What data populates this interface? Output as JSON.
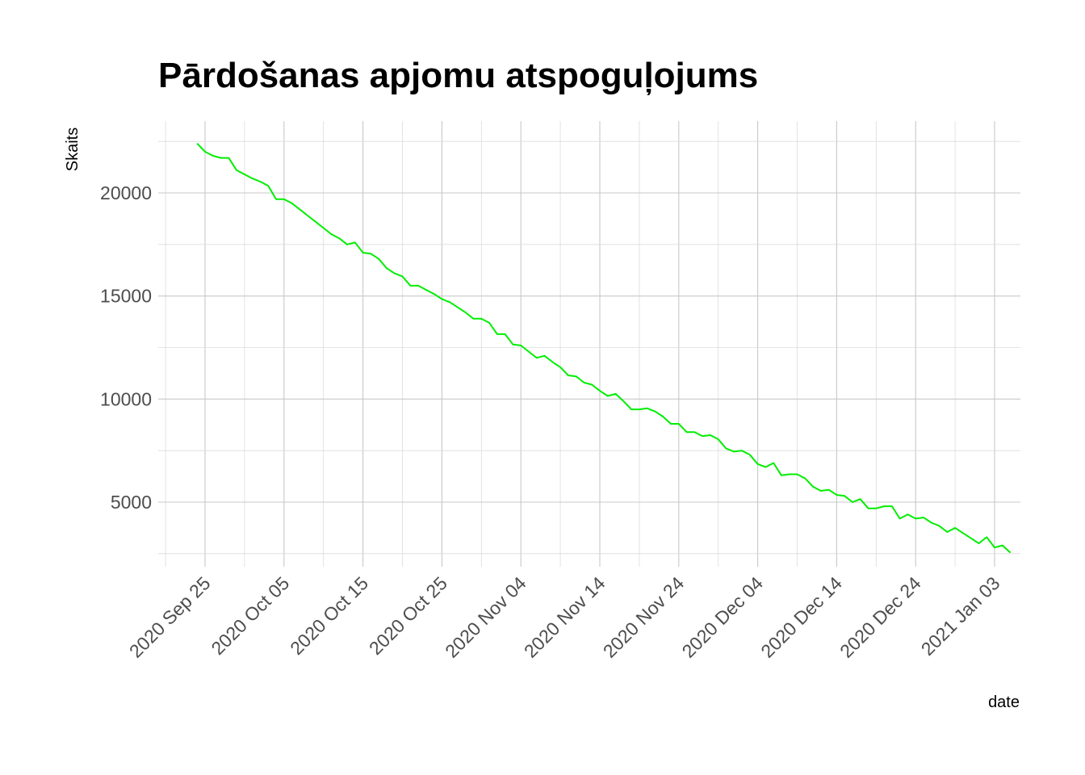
{
  "chart_data": {
    "type": "line",
    "title": "Pārdošanas apjomu atspoguļojums",
    "xlabel": "date",
    "ylabel": "Skaits",
    "x_ticks": [
      "2020 Sep 25",
      "2020 Oct 05",
      "2020 Oct 15",
      "2020 Oct 25",
      "2020 Nov 04",
      "2020 Nov 14",
      "2020 Nov 24",
      "2020 Dec 04",
      "2020 Dec 14",
      "2020 Dec 24",
      "2021 Jan 03"
    ],
    "y_ticks": [
      5000,
      10000,
      15000,
      20000
    ],
    "xlim": [
      "2020-09-20",
      "2021-01-05"
    ],
    "ylim": [
      2000,
      23200
    ],
    "grid": true,
    "line_color": "#00ee00",
    "series": [
      {
        "points": [
          [
            "2020-09-24",
            22400
          ],
          [
            "2020-09-25",
            22000
          ],
          [
            "2020-09-26",
            21800
          ],
          [
            "2020-09-27",
            21700
          ],
          [
            "2020-09-28",
            21700
          ],
          [
            "2020-09-29",
            21100
          ],
          [
            "2020-09-30",
            20900
          ],
          [
            "2020-10-01",
            20700
          ],
          [
            "2020-10-02",
            20550
          ],
          [
            "2020-10-03",
            20350
          ],
          [
            "2020-10-04",
            19700
          ],
          [
            "2020-10-05",
            19700
          ],
          [
            "2020-10-06",
            19500
          ],
          [
            "2020-10-07",
            19200
          ],
          [
            "2020-10-08",
            18900
          ],
          [
            "2020-10-09",
            18600
          ],
          [
            "2020-10-10",
            18300
          ],
          [
            "2020-10-11",
            18000
          ],
          [
            "2020-10-12",
            17800
          ],
          [
            "2020-10-13",
            17500
          ],
          [
            "2020-10-14",
            17600
          ],
          [
            "2020-10-15",
            17100
          ],
          [
            "2020-10-16",
            17050
          ],
          [
            "2020-10-17",
            16800
          ],
          [
            "2020-10-18",
            16350
          ],
          [
            "2020-10-19",
            16100
          ],
          [
            "2020-10-20",
            15950
          ],
          [
            "2020-10-21",
            15500
          ],
          [
            "2020-10-22",
            15500
          ],
          [
            "2020-10-23",
            15300
          ],
          [
            "2020-10-24",
            15100
          ],
          [
            "2020-10-25",
            14850
          ],
          [
            "2020-10-26",
            14700
          ],
          [
            "2020-10-27",
            14450
          ],
          [
            "2020-10-28",
            14200
          ],
          [
            "2020-10-29",
            13900
          ],
          [
            "2020-10-30",
            13900
          ],
          [
            "2020-10-31",
            13700
          ],
          [
            "2020-11-01",
            13150
          ],
          [
            "2020-11-02",
            13150
          ],
          [
            "2020-11-03",
            12650
          ],
          [
            "2020-11-04",
            12600
          ],
          [
            "2020-11-05",
            12300
          ],
          [
            "2020-11-06",
            12000
          ],
          [
            "2020-11-07",
            12100
          ],
          [
            "2020-11-08",
            11800
          ],
          [
            "2020-11-09",
            11550
          ],
          [
            "2020-11-10",
            11150
          ],
          [
            "2020-11-11",
            11100
          ],
          [
            "2020-11-12",
            10800
          ],
          [
            "2020-11-13",
            10700
          ],
          [
            "2020-11-14",
            10400
          ],
          [
            "2020-11-15",
            10150
          ],
          [
            "2020-11-16",
            10250
          ],
          [
            "2020-11-17",
            9900
          ],
          [
            "2020-11-18",
            9500
          ],
          [
            "2020-11-19",
            9500
          ],
          [
            "2020-11-20",
            9550
          ],
          [
            "2020-11-21",
            9400
          ],
          [
            "2020-11-22",
            9150
          ],
          [
            "2020-11-23",
            8800
          ],
          [
            "2020-11-24",
            8800
          ],
          [
            "2020-11-25",
            8400
          ],
          [
            "2020-11-26",
            8400
          ],
          [
            "2020-11-27",
            8200
          ],
          [
            "2020-11-28",
            8250
          ],
          [
            "2020-11-29",
            8050
          ],
          [
            "2020-11-30",
            7600
          ],
          [
            "2020-12-01",
            7450
          ],
          [
            "2020-12-02",
            7500
          ],
          [
            "2020-12-03",
            7300
          ],
          [
            "2020-12-04",
            6850
          ],
          [
            "2020-12-05",
            6700
          ],
          [
            "2020-12-06",
            6900
          ],
          [
            "2020-12-07",
            6300
          ],
          [
            "2020-12-08",
            6350
          ],
          [
            "2020-12-09",
            6350
          ],
          [
            "2020-12-10",
            6150
          ],
          [
            "2020-12-11",
            5750
          ],
          [
            "2020-12-12",
            5550
          ],
          [
            "2020-12-13",
            5600
          ],
          [
            "2020-12-14",
            5350
          ],
          [
            "2020-12-15",
            5300
          ],
          [
            "2020-12-16",
            5000
          ],
          [
            "2020-12-17",
            5150
          ],
          [
            "2020-12-18",
            4700
          ],
          [
            "2020-12-19",
            4700
          ],
          [
            "2020-12-20",
            4800
          ],
          [
            "2020-12-21",
            4800
          ],
          [
            "2020-12-22",
            4200
          ],
          [
            "2020-12-23",
            4400
          ],
          [
            "2020-12-24",
            4200
          ],
          [
            "2020-12-25",
            4250
          ],
          [
            "2020-12-26",
            4000
          ],
          [
            "2020-12-27",
            3850
          ],
          [
            "2020-12-28",
            3550
          ],
          [
            "2020-12-29",
            3750
          ],
          [
            "2020-12-30",
            3500
          ],
          [
            "2020-12-31",
            3250
          ],
          [
            "2021-01-01",
            3000
          ],
          [
            "2021-01-02",
            3300
          ],
          [
            "2021-01-03",
            2800
          ],
          [
            "2021-01-04",
            2900
          ],
          [
            "2021-01-05",
            2550
          ]
        ]
      }
    ]
  }
}
